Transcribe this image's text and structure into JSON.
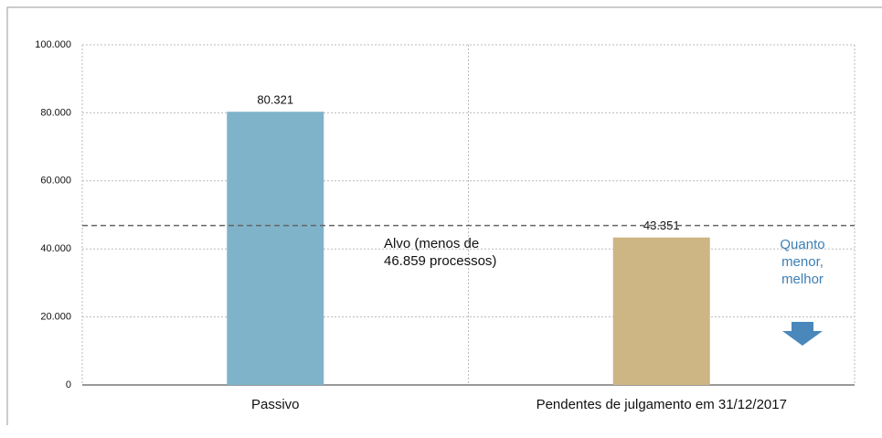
{
  "chart_data": {
    "type": "bar",
    "categories": [
      "Passivo",
      "Pendentes de julgamento em 31/12/2017"
    ],
    "values": [
      80321,
      43351
    ],
    "value_labels": [
      "80.321",
      "43.351"
    ],
    "colors": [
      "#7fb3c9",
      "#cdb584"
    ],
    "ylim": [
      0,
      100000
    ],
    "yticks": [
      {
        "value": 0,
        "label": "0"
      },
      {
        "value": 20000,
        "label": "20.000"
      },
      {
        "value": 40000,
        "label": "40.000"
      },
      {
        "value": 60000,
        "label": "60.000"
      },
      {
        "value": 80000,
        "label": "80.000"
      },
      {
        "value": 100000,
        "label": "100.000"
      }
    ],
    "grid": true,
    "target": {
      "value": 46859,
      "label": [
        "Alvo (menos de",
        "46.859 processos)"
      ]
    },
    "note": [
      "Quanto",
      "menor,",
      "melhor"
    ]
  }
}
